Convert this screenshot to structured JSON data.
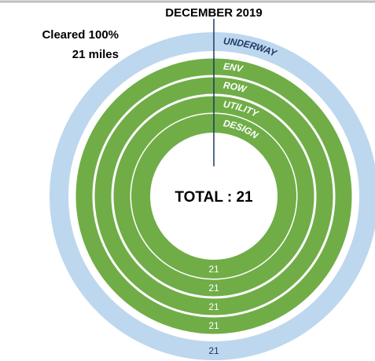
{
  "chart_data": {
    "type": "radial-bar",
    "title": "DECEMBER 2019",
    "annotations": [
      "Cleared 100%",
      "21 miles"
    ],
    "center_label": "TOTAL : 21",
    "categories": [
      "UNDERWAY",
      "ENV",
      "ROW",
      "UTILITY",
      "DESIGN"
    ],
    "values": [
      21,
      21,
      21,
      21,
      21
    ],
    "xlim": [
      0,
      21
    ],
    "colors": [
      "#bdd7ee",
      "#70ad47",
      "#70ad47",
      "#70ad47",
      "#70ad47"
    ],
    "label_colors": [
      "#1f3864",
      "#ffffff",
      "#ffffff",
      "#ffffff",
      "#ffffff"
    ],
    "marker_color": "#1f3864"
  }
}
